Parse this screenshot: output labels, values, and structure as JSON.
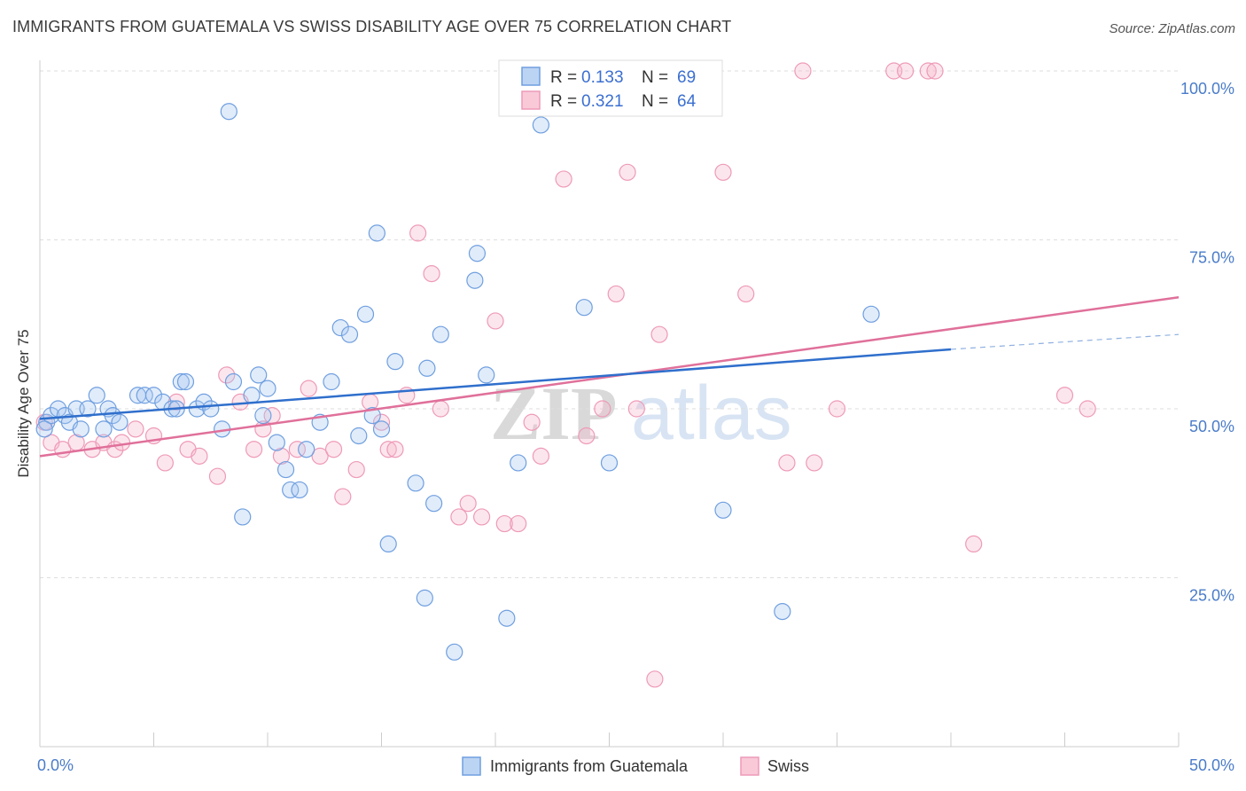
{
  "title": "IMMIGRANTS FROM GUATEMALA VS SWISS DISABILITY AGE OVER 75 CORRELATION CHART",
  "source": "Source: ZipAtlas.com",
  "watermark": {
    "zip": "ZIP",
    "atlas": "atlas"
  },
  "chart_data": {
    "type": "scatter",
    "title": "IMMIGRANTS FROM GUATEMALA VS SWISS DISABILITY AGE OVER 75 CORRELATION CHART",
    "xlabel": "",
    "ylabel": "Disability Age Over 75",
    "xlim": [
      0,
      50
    ],
    "ylim": [
      0,
      102
    ],
    "x_tick_labels": [
      "0.0%",
      "50.0%"
    ],
    "y_ticks": [
      25,
      50,
      75,
      100
    ],
    "y_tick_labels": [
      "25.0%",
      "50.0%",
      "75.0%",
      "100.0%"
    ],
    "grid": true,
    "legend_placement": "top-center",
    "colors": {
      "series1": "#6f9fe0",
      "series2": "#ee9ab8",
      "line1": "#2f6fcc",
      "line2": "#e0709a"
    },
    "series": [
      {
        "name": "Immigrants from Guatemala",
        "R": "0.133",
        "N": "69",
        "trend": {
          "x": [
            0,
            40
          ],
          "y": [
            48.5,
            58.8
          ],
          "dashed_to": [
            50,
            61
          ]
        },
        "points": [
          [
            0.3,
            48
          ],
          [
            0.5,
            49
          ],
          [
            0.8,
            50
          ],
          [
            1.1,
            49
          ],
          [
            1.3,
            48
          ],
          [
            1.6,
            50
          ],
          [
            1.8,
            47
          ],
          [
            2.1,
            50
          ],
          [
            2.5,
            52
          ],
          [
            3.0,
            50
          ],
          [
            3.2,
            49
          ],
          [
            3.5,
            48
          ],
          [
            4.3,
            52
          ],
          [
            4.6,
            52
          ],
          [
            5.0,
            52
          ],
          [
            5.4,
            51
          ],
          [
            5.8,
            50
          ],
          [
            6.2,
            54
          ],
          [
            6.4,
            54
          ],
          [
            6.9,
            50
          ],
          [
            7.2,
            51
          ],
          [
            7.5,
            50
          ],
          [
            8.0,
            47
          ],
          [
            8.3,
            94
          ],
          [
            8.5,
            54
          ],
          [
            8.9,
            34
          ],
          [
            9.3,
            52
          ],
          [
            9.6,
            55
          ],
          [
            9.8,
            49
          ],
          [
            10.0,
            53
          ],
          [
            10.4,
            45
          ],
          [
            10.8,
            41
          ],
          [
            11.0,
            38
          ],
          [
            11.4,
            38
          ],
          [
            11.7,
            44
          ],
          [
            12.3,
            48
          ],
          [
            12.8,
            54
          ],
          [
            13.2,
            62
          ],
          [
            13.6,
            61
          ],
          [
            14.0,
            46
          ],
          [
            14.6,
            49
          ],
          [
            15.0,
            47
          ],
          [
            14.3,
            64
          ],
          [
            15.3,
            30
          ],
          [
            15.6,
            57
          ],
          [
            14.8,
            76
          ],
          [
            16.5,
            39
          ],
          [
            17.0,
            56
          ],
          [
            17.3,
            36
          ],
          [
            16.9,
            22
          ],
          [
            17.6,
            61
          ],
          [
            18.2,
            14
          ],
          [
            19.1,
            69
          ],
          [
            19.6,
            55
          ],
          [
            19.2,
            73
          ],
          [
            20.5,
            19
          ],
          [
            21.0,
            42
          ],
          [
            22.0,
            92
          ],
          [
            23.9,
            65
          ],
          [
            25.0,
            42
          ],
          [
            28.5,
            100
          ],
          [
            30.0,
            35
          ],
          [
            32.6,
            20
          ],
          [
            36.5,
            64
          ],
          [
            0.2,
            47
          ],
          [
            2.8,
            47
          ],
          [
            6.0,
            50
          ],
          [
            21.5,
            100
          ],
          [
            20.8,
            100
          ]
        ]
      },
      {
        "name": "Swiss",
        "R": "0.321",
        "N": "64",
        "trend": {
          "x": [
            0,
            50
          ],
          "y": [
            43,
            66.5
          ]
        },
        "points": [
          [
            0.2,
            48
          ],
          [
            0.5,
            45
          ],
          [
            1.0,
            44
          ],
          [
            1.6,
            45
          ],
          [
            2.3,
            44
          ],
          [
            2.8,
            45
          ],
          [
            3.3,
            44
          ],
          [
            3.6,
            45
          ],
          [
            4.2,
            47
          ],
          [
            5.0,
            46
          ],
          [
            5.5,
            42
          ],
          [
            6.0,
            51
          ],
          [
            6.5,
            44
          ],
          [
            7.0,
            43
          ],
          [
            7.8,
            40
          ],
          [
            8.2,
            55
          ],
          [
            8.8,
            51
          ],
          [
            9.4,
            44
          ],
          [
            9.8,
            47
          ],
          [
            10.2,
            49
          ],
          [
            10.6,
            43
          ],
          [
            11.3,
            44
          ],
          [
            11.8,
            53
          ],
          [
            12.3,
            43
          ],
          [
            12.9,
            44
          ],
          [
            13.3,
            37
          ],
          [
            13.9,
            41
          ],
          [
            14.5,
            51
          ],
          [
            15.0,
            48
          ],
          [
            15.3,
            44
          ],
          [
            15.6,
            44
          ],
          [
            16.1,
            52
          ],
          [
            16.6,
            76
          ],
          [
            17.2,
            70
          ],
          [
            17.6,
            50
          ],
          [
            18.4,
            34
          ],
          [
            18.8,
            36
          ],
          [
            19.4,
            34
          ],
          [
            20.0,
            63
          ],
          [
            20.4,
            33
          ],
          [
            21.0,
            33
          ],
          [
            21.6,
            48
          ],
          [
            22.0,
            43
          ],
          [
            23.0,
            84
          ],
          [
            24.0,
            46
          ],
          [
            24.7,
            50
          ],
          [
            25.3,
            67
          ],
          [
            25.8,
            85
          ],
          [
            26.2,
            50
          ],
          [
            27.0,
            10
          ],
          [
            27.2,
            61
          ],
          [
            30.0,
            85
          ],
          [
            31.0,
            67
          ],
          [
            32.8,
            42
          ],
          [
            33.5,
            100
          ],
          [
            34.0,
            42
          ],
          [
            35.0,
            50
          ],
          [
            37.5,
            100
          ],
          [
            38.0,
            100
          ],
          [
            39.0,
            100
          ],
          [
            39.3,
            100
          ],
          [
            41.0,
            30
          ],
          [
            45.0,
            52
          ],
          [
            46.0,
            50
          ]
        ]
      }
    ]
  }
}
